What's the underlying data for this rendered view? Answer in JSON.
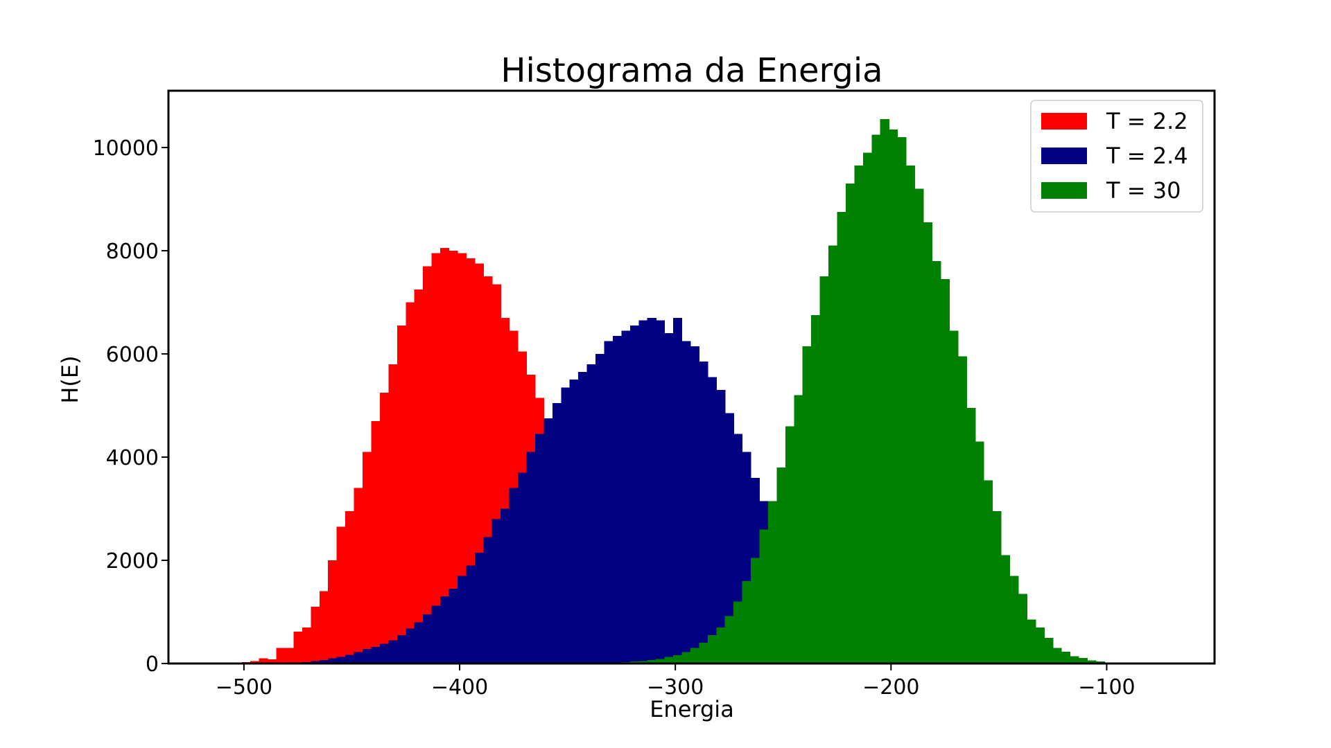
{
  "chart_data": {
    "type": "bar",
    "title": "Histograma da Energia",
    "xlabel": "Energia",
    "ylabel": "H(E)",
    "xlim": [
      -535,
      -50
    ],
    "ylim": [
      0,
      11100
    ],
    "xticks": [
      -500,
      -400,
      -300,
      -200,
      -100
    ],
    "xtick_labels": [
      "−500",
      "−400",
      "−300",
      "−200",
      "−100"
    ],
    "yticks": [
      0,
      2000,
      4000,
      6000,
      8000,
      10000
    ],
    "ytick_labels": [
      "0",
      "2000",
      "4000",
      "6000",
      "8000",
      "10000"
    ],
    "grid": false,
    "legend_position": "top-right",
    "series": [
      {
        "name": "T = 2.2",
        "color": "#ff0000",
        "x_start": -501,
        "bin_width": 4,
        "values": [
          30,
          50,
          100,
          80,
          300,
          300,
          620,
          700,
          1100,
          1400,
          2000,
          2650,
          2950,
          3400,
          4100,
          4700,
          5250,
          5800,
          6550,
          7000,
          7250,
          7700,
          7950,
          8050,
          8000,
          7950,
          7850,
          7750,
          7500,
          7350,
          6700,
          6450,
          6050,
          5600,
          5150,
          4750,
          4450,
          4150
        ]
      },
      {
        "name": "T = 2.4",
        "color": "#000080",
        "x_start": -501,
        "bin_width": 4,
        "values": [
          0,
          0,
          0,
          0,
          0,
          10,
          20,
          30,
          50,
          70,
          100,
          130,
          170,
          220,
          280,
          320,
          380,
          450,
          550,
          680,
          800,
          950,
          1120,
          1300,
          1450,
          1700,
          1900,
          2150,
          2450,
          2800,
          3000,
          3400,
          3700,
          4100,
          4450,
          4750,
          5050,
          5350,
          5500,
          5650,
          5800,
          6000,
          6250,
          6350,
          6450,
          6550,
          6650,
          6700,
          6650,
          6400,
          6700,
          6250,
          6150,
          5850,
          5550,
          5300,
          4850,
          4450,
          4100,
          3600,
          3150,
          2850,
          2450,
          2000,
          1650,
          1300,
          1000
        ]
      },
      {
        "name": "T = 30",
        "color": "#008000",
        "x_start": -333,
        "bin_width": 4,
        "values": [
          10,
          20,
          30,
          40,
          50,
          70,
          90,
          130,
          160,
          220,
          300,
          400,
          550,
          700,
          920,
          1200,
          1600,
          2050,
          2600,
          3150,
          3800,
          4600,
          5200,
          6150,
          6750,
          7500,
          8100,
          8750,
          9300,
          9650,
          9900,
          10250,
          10550,
          10350,
          10200,
          9650,
          9200,
          8550,
          7800,
          7450,
          6450,
          5950,
          4950,
          4300,
          3550,
          2950,
          2100,
          1700,
          1350,
          850,
          700,
          500,
          300,
          230,
          140,
          110,
          60,
          40,
          20,
          10,
          5
        ]
      }
    ]
  }
}
